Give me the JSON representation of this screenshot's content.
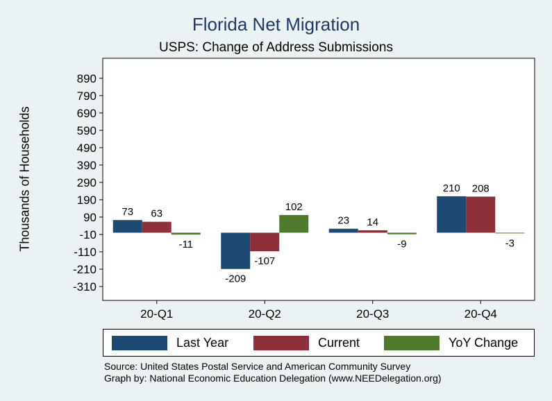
{
  "chart_data": {
    "type": "bar",
    "title": "Florida Net Migration",
    "subtitle": "USPS: Change of Address Submissions",
    "xlabel": "",
    "ylabel": "Thousands of Households",
    "categories": [
      "20-Q1",
      "20-Q2",
      "20-Q3",
      "20-Q4"
    ],
    "series": [
      {
        "name": "Last Year",
        "color": "#1d4a72",
        "values": [
          73,
          -209,
          23,
          210
        ]
      },
      {
        "name": "Current",
        "color": "#8e2f3c",
        "values": [
          63,
          -107,
          14,
          208
        ]
      },
      {
        "name": "YoY Change",
        "color": "#4f7a2b",
        "values": [
          -11,
          102,
          -9,
          -3
        ]
      }
    ],
    "yticks": [
      890,
      790,
      690,
      590,
      490,
      390,
      290,
      190,
      90,
      -10,
      -110,
      -210,
      -310
    ],
    "ylim": [
      -390,
      1005
    ],
    "grid": false,
    "legend_position": "bottom"
  },
  "footer": {
    "source": "Source: United States Postal Service and American Community Survey",
    "credit": "Graph by: National Economic Education Delegation (www.NEEDelegation.org)"
  }
}
